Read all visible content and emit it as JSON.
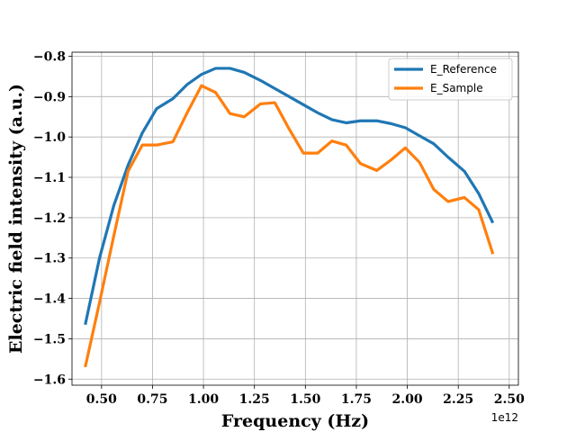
{
  "chart_data": {
    "type": "line",
    "xlabel": "Frequency (Hz)",
    "ylabel": "Electric field intensity (a.u.)",
    "x_offset_label": "1e12",
    "xlim": [
      0.355,
      2.545
    ],
    "ylim": [
      -1.615,
      -0.79
    ],
    "x_ticks": [
      0.5,
      0.75,
      1.0,
      1.25,
      1.5,
      1.75,
      2.0,
      2.25,
      2.5
    ],
    "x_tick_labels": [
      "0.50",
      "0.75",
      "1.00",
      "1.25",
      "1.50",
      "1.75",
      "2.00",
      "2.25",
      "2.50"
    ],
    "y_ticks": [
      -1.6,
      -1.5,
      -1.4,
      -1.3,
      -1.2,
      -1.1,
      -1.0,
      -0.9,
      -0.8
    ],
    "y_tick_labels": [
      "−1.6",
      "−1.5",
      "−1.4",
      "−1.3",
      "−1.2",
      "−1.1",
      "−1.0",
      "−0.9",
      "−0.8"
    ],
    "grid": true,
    "legend_position": "top-right",
    "x": [
      0.42,
      0.49,
      0.56,
      0.63,
      0.7,
      0.77,
      0.85,
      0.92,
      0.99,
      1.06,
      1.13,
      1.2,
      1.28,
      1.35,
      1.42,
      1.49,
      1.56,
      1.63,
      1.7,
      1.77,
      1.85,
      1.92,
      1.99,
      2.06,
      2.13,
      2.2,
      2.28,
      2.35,
      2.42
    ],
    "series": [
      {
        "name": "E_Reference",
        "color": "#1f77b4",
        "values": [
          -1.465,
          -1.3,
          -1.17,
          -1.07,
          -0.99,
          -0.93,
          -0.905,
          -0.87,
          -0.845,
          -0.83,
          -0.83,
          -0.84,
          -0.86,
          -0.88,
          -0.9,
          -0.92,
          -0.94,
          -0.957,
          -0.965,
          -0.96,
          -0.96,
          -0.967,
          -0.977,
          -0.997,
          -1.017,
          -1.05,
          -1.085,
          -1.14,
          -1.213
        ]
      },
      {
        "name": "E_Sample",
        "color": "#ff7f0e",
        "values": [
          -1.57,
          -1.41,
          -1.245,
          -1.085,
          -1.02,
          -1.02,
          -1.012,
          -0.94,
          -0.873,
          -0.89,
          -0.942,
          -0.95,
          -0.918,
          -0.915,
          -0.98,
          -1.04,
          -1.04,
          -1.01,
          -1.02,
          -1.066,
          -1.083,
          -1.057,
          -1.027,
          -1.063,
          -1.13,
          -1.16,
          -1.15,
          -1.18,
          -1.29
        ]
      }
    ]
  }
}
